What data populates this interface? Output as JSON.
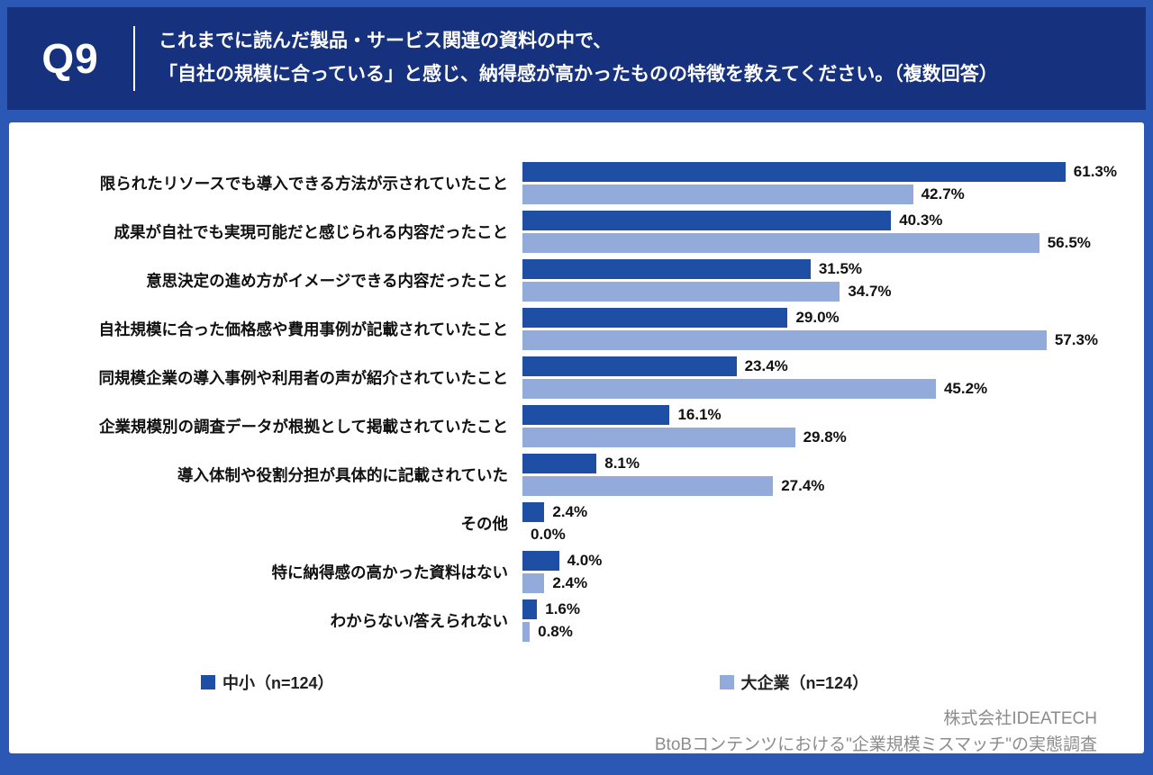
{
  "header": {
    "question_number": "Q9",
    "question_line1": "これまでに読んだ製品・サービス関連の資料の中で、",
    "question_line2": "「自社の規模に合っている」と感じ、納得感が高かったものの特徴を教えてください。（複数回答）"
  },
  "chart_data": {
    "type": "bar",
    "orientation": "horizontal",
    "title": "",
    "xlabel": "",
    "ylabel": "",
    "xlim": [
      0,
      65
    ],
    "value_suffix": "%",
    "legend_position": "bottom",
    "grid": false,
    "categories": [
      "限られたリソースでも導入できる方法が示されていたこと",
      "成果が自社でも実現可能だと感じられる内容だったこと",
      "意思決定の進め方がイメージできる内容だったこと",
      "自社規模に合った価格感や費用事例が記載されていたこと",
      "同規模企業の導入事例や利用者の声が紹介されていたこと",
      "企業規模別の調査データが根拠として掲載されていたこと",
      "導入体制や役割分担が具体的に記載されていた",
      "その他",
      "特に納得感の高かった資料はない",
      "わからない/答えられない"
    ],
    "series": [
      {
        "name": "中小（n=124）",
        "color": "#1e4fa5",
        "values": [
          61.3,
          40.3,
          31.5,
          29.0,
          23.4,
          16.1,
          8.1,
          2.4,
          4.0,
          1.6
        ]
      },
      {
        "name": "大企業（n=124）",
        "color": "#92abdb",
        "values": [
          42.7,
          56.5,
          34.7,
          57.3,
          45.2,
          29.8,
          27.4,
          0.0,
          2.4,
          0.8
        ]
      }
    ]
  },
  "footer": {
    "company": "株式会社IDEATECH",
    "survey": "BtoBコンテンツにおける\"企業規模ミスマッチ\"の実態調査"
  },
  "colors": {
    "frame": "#2a58b4",
    "header_band": "#16327e",
    "bar_small_medium": "#1e4fa5",
    "bar_large": "#92abdb",
    "card": "#ffffff",
    "footer_text": "#8c8c8c"
  }
}
